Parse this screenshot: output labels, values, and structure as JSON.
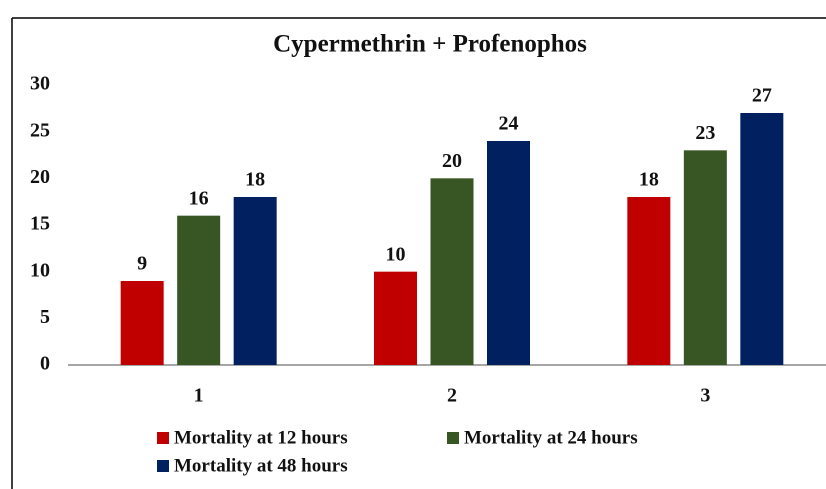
{
  "chart_data": {
    "type": "bar",
    "title": "Cypermethrin + Profenophos",
    "categories": [
      "1",
      "2",
      "3"
    ],
    "series": [
      {
        "name": "Mortality at 12 hours",
        "color": "#c00000",
        "values": [
          9,
          10,
          18
        ]
      },
      {
        "name": "Mortality at 24 hours",
        "color": "#375623",
        "values": [
          16,
          20,
          23
        ]
      },
      {
        "name": "Mortality at 48 hours",
        "color": "#002060",
        "values": [
          18,
          24,
          27
        ]
      }
    ],
    "ylim": [
      0,
      30
    ],
    "yticks": [
      0,
      5,
      10,
      15,
      20,
      25,
      30
    ],
    "grid": false,
    "legend": "bottom"
  }
}
